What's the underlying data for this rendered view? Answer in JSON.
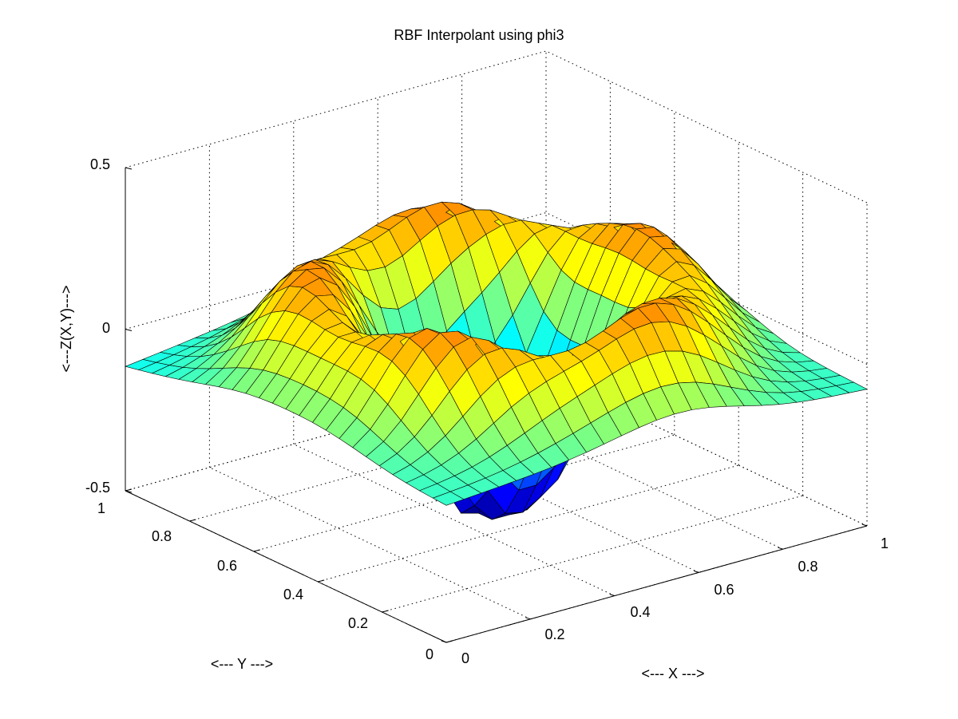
{
  "chart_data": {
    "type": "surface",
    "title": "RBF Interpolant using phi3",
    "xlabel": "<--- X --->",
    "ylabel": "<--- Y --->",
    "zlabel": "<---Z(X,Y)--->",
    "xlim": [
      0,
      1
    ],
    "ylim": [
      0,
      1
    ],
    "zlim": [
      -0.5,
      0.5
    ],
    "x_ticks": [
      "0",
      "0.2",
      "0.4",
      "0.6",
      "0.8",
      "1"
    ],
    "y_ticks": [
      "0",
      "0.2",
      "0.4",
      "0.6",
      "0.8",
      "1"
    ],
    "z_ticks": [
      "-0.5",
      "0",
      "0.5"
    ],
    "grid": true,
    "colormap": "jet",
    "grid_points": 25,
    "surface_shape": "ring-shaped ridge near z 0.25 at radius 0.35 from center (0.5,0.5), deep bowl in the center reaching about -0.5, central spike near 0.38",
    "values": {
      "center_min": -0.5,
      "ridge_max": 0.38,
      "corner_x1_y0": -0.17,
      "corner_x0_y1": -0.08
    },
    "colors": {
      "jet_low": "#0000c8",
      "jet_high": "#ff0000"
    }
  }
}
